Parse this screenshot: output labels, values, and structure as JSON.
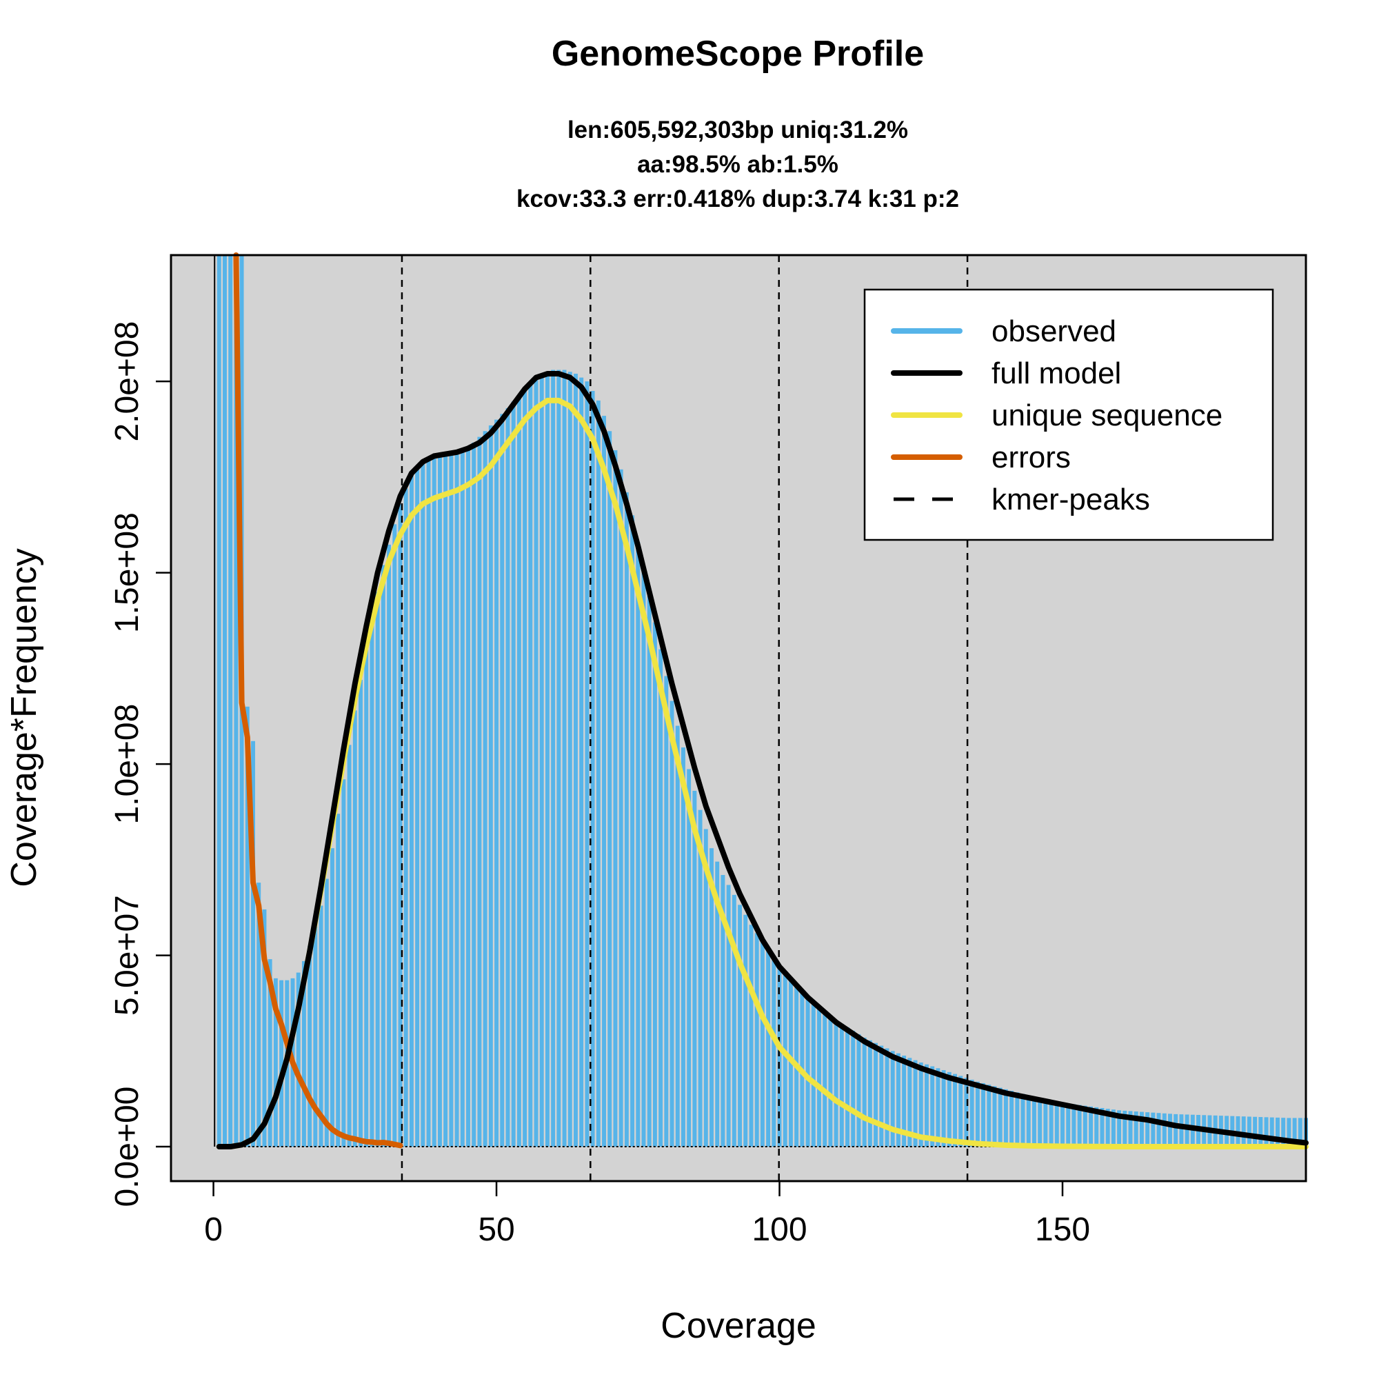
{
  "chart_data": {
    "type": "area",
    "title": "GenomeScope Profile",
    "subtitle_lines": [
      "len:605,592,303bp uniq:31.2%",
      "aa:98.5% ab:1.5%",
      "kcov:33.3 err:0.418%  dup:3.74  k:31 p:2"
    ],
    "xlabel": "Coverage",
    "ylabel": "Coverage*Frequency",
    "xlim": [
      -7.5,
      193
    ],
    "ylim": [
      -9000000,
      233000000
    ],
    "xticks": [
      0,
      50,
      100,
      150
    ],
    "xtick_labels": [
      "0",
      "50",
      "100",
      "150"
    ],
    "yticks": [
      0,
      50000000,
      100000000,
      150000000,
      200000000
    ],
    "ytick_labels": [
      "0.0e+00",
      "5.0e+07",
      "1.0e+08",
      "1.5e+08",
      "2.0e+08"
    ],
    "kmer_peaks": [
      33.3,
      66.6,
      99.9,
      133.2
    ],
    "colors": {
      "plot_bg": "#d3d3d3",
      "observed": "#56b4e9",
      "full_model": "#000000",
      "unique_sequence": "#f0e442",
      "errors": "#d55e00",
      "kmer_peaks": "#000000"
    },
    "legend": {
      "position": "top-right",
      "entries": [
        {
          "label": "observed",
          "style": "solid",
          "color": "#56b4e9"
        },
        {
          "label": "full model",
          "style": "solid",
          "color": "#000000"
        },
        {
          "label": "unique sequence",
          "style": "solid",
          "color": "#f0e442"
        },
        {
          "label": "errors",
          "style": "solid",
          "color": "#d55e00"
        },
        {
          "label": "kmer-peaks",
          "style": "dashed",
          "color": "#000000"
        }
      ]
    },
    "observed_anchors": {
      "x": [
        1,
        2,
        3,
        4,
        5,
        6,
        7,
        8,
        9,
        10,
        11,
        12,
        13,
        14,
        15,
        16,
        17,
        18,
        19,
        20,
        21,
        22,
        23,
        24,
        25,
        26,
        28,
        30,
        33,
        35,
        38,
        40,
        42,
        44,
        46,
        48,
        50,
        52,
        54,
        56,
        58,
        60,
        62,
        64,
        66,
        68,
        70,
        72,
        74,
        76,
        78,
        80,
        82,
        85,
        88,
        90,
        95,
        100,
        105,
        110,
        115,
        120,
        125,
        130,
        135,
        140,
        145,
        150,
        155,
        160,
        170,
        180,
        190,
        193
      ],
      "y": [
        233000000,
        233000000,
        233000000,
        233000000,
        233000000,
        115000000,
        106000000,
        69000000,
        62000000,
        49000000,
        44000000,
        43500000,
        43500000,
        44000000,
        45500000,
        48500000,
        52500000,
        57500000,
        63000000,
        70000000,
        78000000,
        87000000,
        96000000,
        105000000,
        114000000,
        122000000,
        138000000,
        152000000,
        168000000,
        176000000,
        180000000,
        181000000,
        181000000,
        182000000,
        184000000,
        187000000,
        190000000,
        193000000,
        196500000,
        199500000,
        202000000,
        203000000,
        203000000,
        202000000,
        200000000,
        195000000,
        187000000,
        177000000,
        165000000,
        151000000,
        137000000,
        123000000,
        110000000,
        93000000,
        78000000,
        71000000,
        58000000,
        47000000,
        39000000,
        33000000,
        28500000,
        25000000,
        22000000,
        19500000,
        17000000,
        15000000,
        13000000,
        11500000,
        10500000,
        9500000,
        8500000,
        8000000,
        7500000,
        7500000
      ]
    },
    "series": [
      {
        "name": "full model",
        "x": [
          1,
          3,
          5,
          7,
          9,
          11,
          13,
          15,
          17,
          19,
          21,
          23,
          25,
          27,
          29,
          31,
          33,
          35,
          37,
          39,
          41,
          43,
          45,
          47,
          49,
          51,
          53,
          55,
          57,
          59,
          61,
          63,
          65,
          67,
          69,
          71,
          73,
          75,
          77,
          79,
          81,
          83,
          85,
          87,
          89,
          91,
          93,
          95,
          97,
          100,
          105,
          110,
          115,
          120,
          125,
          130,
          135,
          140,
          145,
          150,
          155,
          160,
          165,
          170,
          175,
          180,
          185,
          190,
          193
        ],
        "y": [
          0,
          0,
          500000,
          2000000,
          6000000,
          13000000,
          23000000,
          36000000,
          51000000,
          68000000,
          86000000,
          104000000,
          121000000,
          136000000,
          150000000,
          161000000,
          170000000,
          176000000,
          179000000,
          180500000,
          181000000,
          181500000,
          182500000,
          184000000,
          186500000,
          190000000,
          194000000,
          198000000,
          201000000,
          202000000,
          202000000,
          201000000,
          198500000,
          194000000,
          187000000,
          178000000,
          168000000,
          157000000,
          145000000,
          133000000,
          121000000,
          110000000,
          99000000,
          89000000,
          81000000,
          73000000,
          66000000,
          60000000,
          54000000,
          47000000,
          39000000,
          32500000,
          27500000,
          23500000,
          20500000,
          18000000,
          16000000,
          14000000,
          12500000,
          11000000,
          9500000,
          8000000,
          7000000,
          5500000,
          4500000,
          3500000,
          2500000,
          1500000,
          1000000
        ]
      },
      {
        "name": "unique sequence",
        "x": [
          1,
          3,
          5,
          7,
          9,
          11,
          13,
          15,
          17,
          19,
          21,
          23,
          25,
          27,
          29,
          31,
          33,
          35,
          37,
          39,
          41,
          43,
          45,
          47,
          49,
          51,
          53,
          55,
          57,
          59,
          61,
          63,
          65,
          67,
          69,
          71,
          73,
          75,
          77,
          79,
          81,
          83,
          85,
          87,
          89,
          91,
          93,
          95,
          97,
          100,
          105,
          110,
          115,
          120,
          125,
          130,
          135,
          140,
          145,
          150,
          160,
          170,
          180,
          193
        ],
        "y": [
          0,
          0,
          500000,
          2000000,
          6000000,
          13000000,
          23000000,
          36000000,
          51000000,
          67000000,
          84000000,
          101000000,
          117000000,
          131000000,
          143000000,
          153000000,
          160000000,
          165000000,
          168000000,
          169500000,
          170500000,
          171500000,
          173000000,
          175000000,
          178000000,
          182000000,
          186000000,
          190000000,
          193000000,
          195000000,
          195000000,
          193500000,
          190000000,
          185000000,
          177000000,
          168000000,
          157000000,
          145000000,
          133000000,
          120000000,
          107000000,
          95000000,
          83000000,
          73000000,
          64000000,
          56000000,
          48000000,
          41000000,
          34000000,
          26000000,
          18000000,
          12000000,
          7500000,
          4500000,
          2500000,
          1500000,
          800000,
          400000,
          200000,
          100000,
          0,
          0,
          0,
          0
        ]
      },
      {
        "name": "errors",
        "x": [
          4,
          5,
          6,
          7,
          8,
          9,
          10,
          11,
          12,
          13,
          14,
          15,
          16,
          17,
          18,
          19,
          20,
          21,
          22,
          23,
          24,
          25,
          26,
          27,
          28,
          29,
          30,
          31,
          32,
          33
        ],
        "y": [
          233000000,
          116000000,
          107000000,
          69000000,
          63000000,
          49000000,
          43000000,
          36000000,
          32000000,
          27000000,
          22000000,
          18500000,
          15500000,
          12500000,
          10000000,
          8000000,
          6000000,
          4500000,
          3500000,
          2800000,
          2300000,
          2000000,
          1600000,
          1300000,
          1200000,
          1000000,
          1100000,
          900000,
          600000,
          300000
        ]
      }
    ]
  }
}
